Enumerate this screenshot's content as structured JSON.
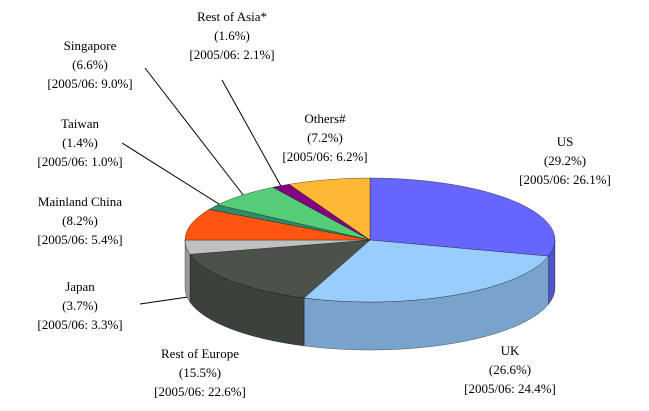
{
  "chart_data": {
    "type": "pie3d",
    "categories": [
      "US",
      "UK",
      "Rest of Europe",
      "Japan",
      "Mainland China",
      "Taiwan",
      "Singapore",
      "Rest of Asia*",
      "Others#"
    ],
    "values": [
      29.2,
      26.6,
      15.5,
      3.7,
      8.2,
      1.4,
      6.6,
      1.6,
      7.2
    ],
    "value_labels": [
      "(29.2%)",
      "(26.6%)",
      "(15.5%)",
      "(3.7%)",
      "(8.2%)",
      "(1.4%)",
      "(6.6%)",
      "(1.6%)",
      "(7.2%)"
    ],
    "prior_labels": [
      "[2005/06: 26.1%]",
      "[2005/06: 24.4%]",
      "[2005/06: 22.6%]",
      "[2005/06: 3.3%]",
      "[2005/06: 5.4%]",
      "[2005/06: 1.0%]",
      "[2005/06: 9.0%]",
      "[2005/06: 2.1%]",
      "[2005/06: 6.2%]"
    ],
    "colors": [
      "#6666ff",
      "#99ccff",
      "#4a524a",
      "#c0c0c0",
      "#ff5511",
      "#2e8b6e",
      "#55cc77",
      "#800080",
      "#ffb833"
    ]
  }
}
